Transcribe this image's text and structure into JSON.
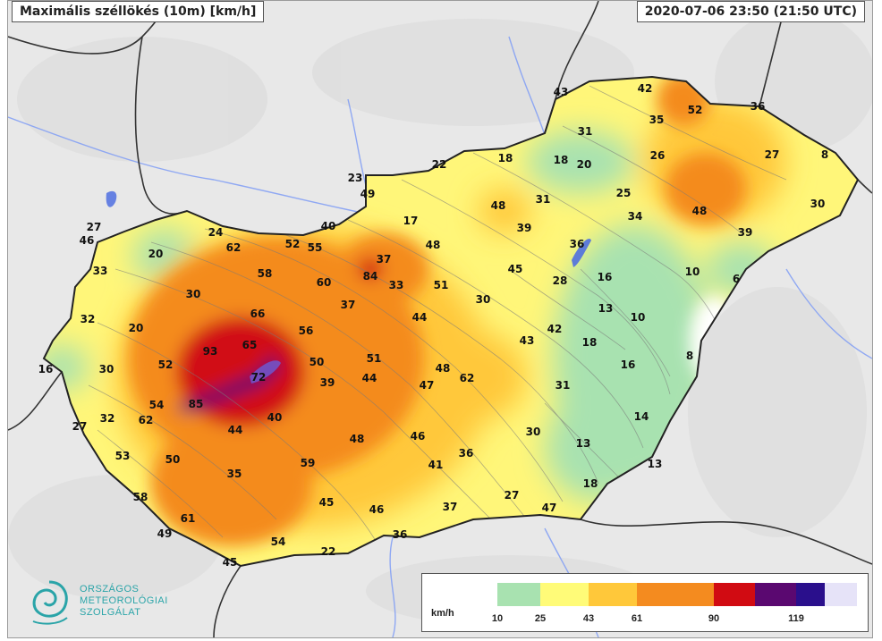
{
  "title": "Maximális széllökés (10m) [km/h]",
  "timestamp": "2020-07-06 23:50 (21:50 UTC)",
  "legend": {
    "unit": "km/h",
    "colors": [
      "#ffffff",
      "#a8e2b0",
      "#fffb78",
      "#ffc83a",
      "#f48b1f",
      "#d10b12",
      "#5a0870",
      "#2a0f8c",
      "#e6e3f8"
    ],
    "ticks": [
      "10",
      "25",
      "43",
      "61",
      "90",
      "119"
    ]
  },
  "logo": {
    "line1": "ORSZÁGOS",
    "line2": "METEOROLÓGIAI",
    "line3": "SZOLGÁLAT"
  },
  "stations": [
    "43",
    "42",
    "52",
    "36",
    "31",
    "35",
    "8",
    "27",
    "22",
    "18",
    "18",
    "20",
    "26",
    "30",
    "25",
    "31",
    "23",
    "49",
    "48",
    "17",
    "39",
    "34",
    "48",
    "40",
    "48",
    "39",
    "24",
    "62",
    "52",
    "55",
    "27",
    "46",
    "20",
    "36",
    "45",
    "10",
    "33",
    "58",
    "37",
    "6",
    "60",
    "84",
    "33",
    "51",
    "16",
    "30",
    "28",
    "30",
    "37",
    "13",
    "10",
    "66",
    "44",
    "42",
    "32",
    "20",
    "56",
    "43",
    "18",
    "93",
    "65",
    "8",
    "16",
    "30",
    "52",
    "50",
    "51",
    "48",
    "62",
    "16",
    "72",
    "39",
    "44",
    "47",
    "31",
    "54",
    "85",
    "27",
    "32",
    "62",
    "40",
    "44",
    "14",
    "48",
    "46",
    "30",
    "13",
    "53",
    "50",
    "59",
    "41",
    "36",
    "13",
    "35",
    "18",
    "58",
    "45",
    "46",
    "37",
    "27",
    "47",
    "61",
    "49",
    "54",
    "36",
    "22",
    "45"
  ]
}
